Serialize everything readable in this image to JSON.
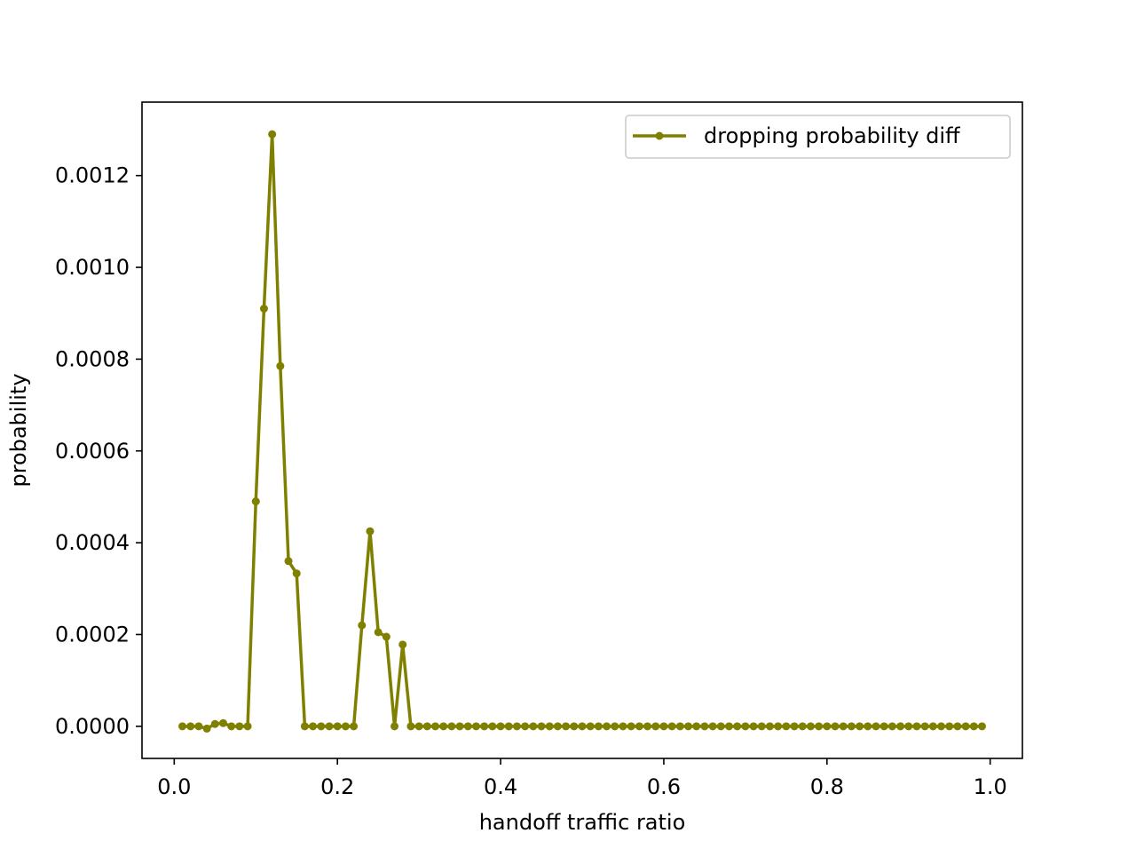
{
  "chart_data": {
    "type": "line",
    "title": "",
    "xlabel": "handoff traffic ratio",
    "ylabel": "probability",
    "xlim": [
      -0.0395,
      1.0395
    ],
    "ylim": [
      -7e-05,
      0.00136
    ],
    "xticks": [
      0.0,
      0.2,
      0.4,
      0.6,
      0.8,
      1.0
    ],
    "xtick_labels": [
      "0.0",
      "0.2",
      "0.4",
      "0.6",
      "0.8",
      "1.0"
    ],
    "yticks": [
      0.0,
      0.0002,
      0.0004,
      0.0006,
      0.0008,
      0.001,
      0.0012
    ],
    "ytick_labels": [
      "0.0000",
      "0.0002",
      "0.0004",
      "0.0006",
      "0.0008",
      "0.0010",
      "0.0012"
    ],
    "grid": false,
    "legend_position": "upper-right",
    "color": "#808000",
    "series": [
      {
        "name": "dropping probability diff",
        "points": [
          [
            0.01,
            0.0
          ],
          [
            0.02,
            0.0
          ],
          [
            0.03,
            0.0
          ],
          [
            0.04,
            -5e-06
          ],
          [
            0.05,
            5e-06
          ],
          [
            0.06,
            7e-06
          ],
          [
            0.07,
            0.0
          ],
          [
            0.08,
            0.0
          ],
          [
            0.09,
            0.0
          ],
          [
            0.1,
            0.00049
          ],
          [
            0.11,
            0.00091
          ],
          [
            0.12,
            0.00129
          ],
          [
            0.13,
            0.000785
          ],
          [
            0.14,
            0.00036
          ],
          [
            0.15,
            0.000333
          ],
          [
            0.16,
            0.0
          ],
          [
            0.17,
            0.0
          ],
          [
            0.18,
            0.0
          ],
          [
            0.19,
            0.0
          ],
          [
            0.2,
            0.0
          ],
          [
            0.21,
            0.0
          ],
          [
            0.22,
            0.0
          ],
          [
            0.23,
            0.00022
          ],
          [
            0.24,
            0.000425
          ],
          [
            0.25,
            0.000205
          ],
          [
            0.26,
            0.000195
          ],
          [
            0.27,
            0.0
          ],
          [
            0.28,
            0.000178
          ],
          [
            0.29,
            0.0
          ],
          [
            0.3,
            0.0
          ],
          [
            0.31,
            0.0
          ],
          [
            0.32,
            0.0
          ],
          [
            0.33,
            0.0
          ],
          [
            0.34,
            0.0
          ],
          [
            0.35,
            0.0
          ],
          [
            0.36,
            0.0
          ],
          [
            0.37,
            0.0
          ],
          [
            0.38,
            0.0
          ],
          [
            0.39,
            0.0
          ],
          [
            0.4,
            0.0
          ],
          [
            0.41,
            0.0
          ],
          [
            0.42,
            0.0
          ],
          [
            0.43,
            0.0
          ],
          [
            0.44,
            0.0
          ],
          [
            0.45,
            0.0
          ],
          [
            0.46,
            0.0
          ],
          [
            0.47,
            0.0
          ],
          [
            0.48,
            0.0
          ],
          [
            0.49,
            0.0
          ],
          [
            0.5,
            0.0
          ],
          [
            0.51,
            0.0
          ],
          [
            0.52,
            0.0
          ],
          [
            0.53,
            0.0
          ],
          [
            0.54,
            0.0
          ],
          [
            0.55,
            0.0
          ],
          [
            0.56,
            0.0
          ],
          [
            0.57,
            0.0
          ],
          [
            0.58,
            0.0
          ],
          [
            0.59,
            0.0
          ],
          [
            0.6,
            0.0
          ],
          [
            0.61,
            0.0
          ],
          [
            0.62,
            0.0
          ],
          [
            0.63,
            0.0
          ],
          [
            0.64,
            0.0
          ],
          [
            0.65,
            0.0
          ],
          [
            0.66,
            0.0
          ],
          [
            0.67,
            0.0
          ],
          [
            0.68,
            0.0
          ],
          [
            0.69,
            0.0
          ],
          [
            0.7,
            0.0
          ],
          [
            0.71,
            0.0
          ],
          [
            0.72,
            0.0
          ],
          [
            0.73,
            0.0
          ],
          [
            0.74,
            0.0
          ],
          [
            0.75,
            0.0
          ],
          [
            0.76,
            0.0
          ],
          [
            0.77,
            0.0
          ],
          [
            0.78,
            0.0
          ],
          [
            0.79,
            0.0
          ],
          [
            0.8,
            0.0
          ],
          [
            0.81,
            0.0
          ],
          [
            0.82,
            0.0
          ],
          [
            0.83,
            0.0
          ],
          [
            0.84,
            0.0
          ],
          [
            0.85,
            0.0
          ],
          [
            0.86,
            0.0
          ],
          [
            0.87,
            0.0
          ],
          [
            0.88,
            0.0
          ],
          [
            0.89,
            0.0
          ],
          [
            0.9,
            0.0
          ],
          [
            0.91,
            0.0
          ],
          [
            0.92,
            0.0
          ],
          [
            0.93,
            0.0
          ],
          [
            0.94,
            0.0
          ],
          [
            0.95,
            0.0
          ],
          [
            0.96,
            0.0
          ],
          [
            0.97,
            0.0
          ],
          [
            0.98,
            0.0
          ],
          [
            0.99,
            0.0
          ]
        ]
      }
    ]
  }
}
